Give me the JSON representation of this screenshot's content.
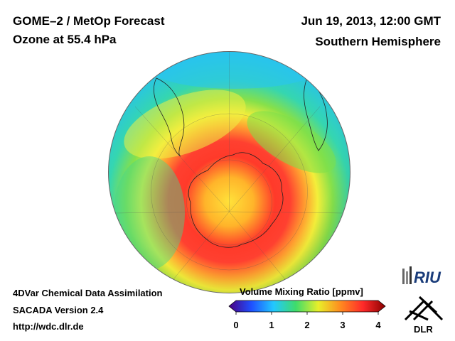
{
  "header": {
    "product": "GOME–2 / MetOp Forecast",
    "species_level": "Ozone at 55.4 hPa",
    "datetime": "Jun 19, 2013, 12:00 GMT",
    "region": "Southern Hemisphere"
  },
  "footer": {
    "method": "4DVar Chemical Data Assimilation",
    "version": "SACADA Version 2.4",
    "url": "http://wdc.dlr.de"
  },
  "colorbar": {
    "title": "Volume Mixing Ratio [ppmv]",
    "ticks": [
      "0",
      "1",
      "2",
      "3",
      "4"
    ],
    "range": [
      0,
      4
    ],
    "colors": [
      "#4b0082",
      "#1f4fff",
      "#22c8ff",
      "#3fdc6a",
      "#e8ef2a",
      "#ff8a1f",
      "#ff2a2a",
      "#8b0000"
    ]
  },
  "logos": {
    "riu": "RIU",
    "dlr": "DLR"
  },
  "map": {
    "projection": "orthographic south-polar",
    "icons": [
      "globe-map",
      "antarctica-outline",
      "south-america-outline",
      "africa-outline"
    ]
  }
}
